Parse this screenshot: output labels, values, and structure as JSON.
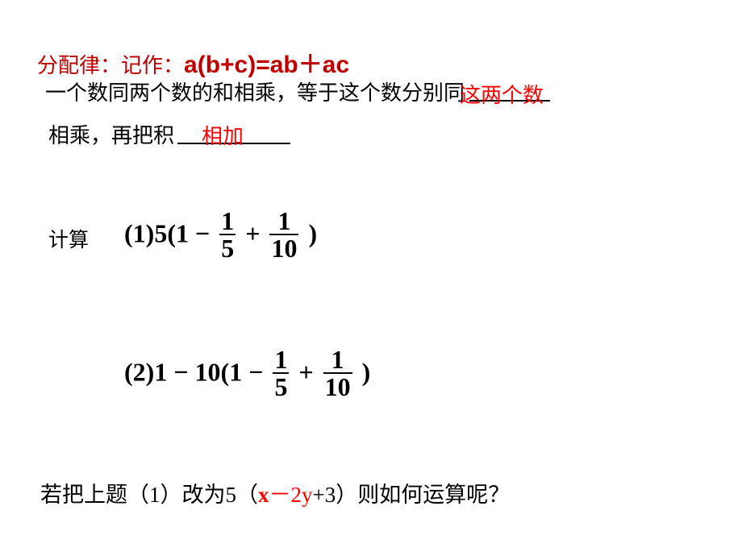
{
  "line1": {
    "label": "分配律：",
    "jizuo": "记作：",
    "formula": "a(b+c)=ab＋ac"
  },
  "line2": {
    "text_part1": "一个数同两个数的和相乘，等于这个数分别同",
    "blank1_fill": "这两个数"
  },
  "line3": {
    "text_part2": "相乘，再把积",
    "blank2_fill": "相加"
  },
  "calc": {
    "label": "计算",
    "expr1": {
      "prefix": "(1)5(1",
      "minus": "−",
      "f1_num": "1",
      "f1_den": "5",
      "plus": "+",
      "f2_num": "1",
      "f2_den": "10",
      "suffix": ")"
    },
    "expr2": {
      "prefix": "(2)1",
      "minus1": "−",
      "mid": "10(1",
      "minus2": "−",
      "f1_num": "1",
      "f1_den": "5",
      "plus": "+",
      "f2_num": "1",
      "f2_den": "10",
      "suffix": ")"
    }
  },
  "line4": {
    "p1": "若把上题（",
    "one": "1",
    "p2": "）改为",
    "five": "5",
    "p3": "（",
    "x": "x",
    "minus2y": "－2y",
    "plus3": "+3",
    "p4": "）则如何运算呢？"
  },
  "colors": {
    "red_dark": "#c00000",
    "red_bright": "#ff0000",
    "black": "#000000",
    "background": "#ffffff"
  }
}
